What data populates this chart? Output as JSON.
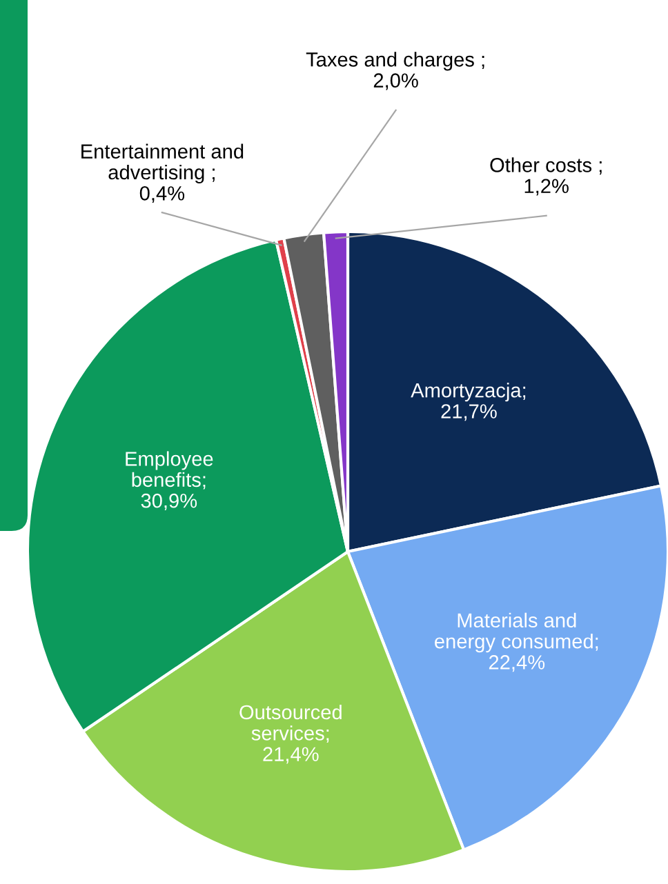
{
  "chart_data": {
    "type": "pie",
    "categories": [
      "Amortyzacja",
      "Materials and energy consumed",
      "Outsourced services",
      "Employee benefits",
      "Entertainment and advertising",
      "Taxes and charges",
      "Other costs"
    ],
    "values": [
      21.7,
      22.4,
      21.4,
      30.9,
      0.4,
      2.0,
      1.2
    ],
    "value_labels": [
      "; 21,7%",
      "; 22,4%",
      "; 21,4%",
      "; 30,9%",
      "; 0,4%",
      "; 2,0%",
      "; 1,2%"
    ],
    "colors": [
      "#0c2a55",
      "#74aaf2",
      "#92d050",
      "#0c9a5c",
      "#e0404a",
      "#5f5f5f",
      "#8436c8"
    ],
    "legend": false
  }
}
